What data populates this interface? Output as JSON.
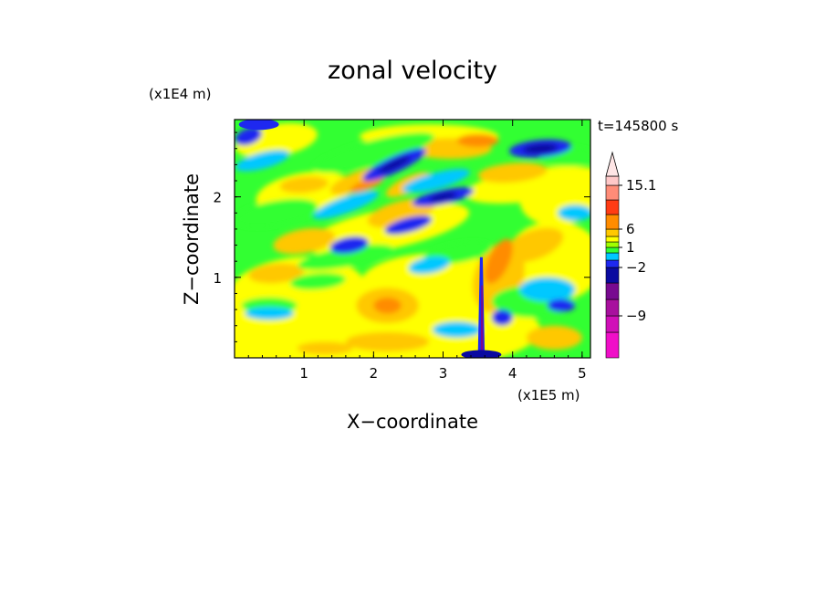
{
  "chart_data": {
    "type": "heatmap",
    "title": "zonal velocity",
    "xlabel": "X−coordinate",
    "ylabel": "Z−coordinate",
    "x_scale_label": "(x1E5 m)",
    "y_scale_label": "(x1E4 m)",
    "time_label": "t=145800 s",
    "xlim": [
      0,
      5.12
    ],
    "ylim": [
      0,
      2.96
    ],
    "x_ticks": [
      "1",
      "2",
      "3",
      "4",
      "5"
    ],
    "x_tick_values": [
      1,
      2,
      3,
      4,
      5
    ],
    "y_ticks": [
      "1",
      "2"
    ],
    "y_tick_values": [
      1,
      2
    ],
    "colorbar": {
      "levels": [
        -15,
        -12,
        -9,
        -6,
        -4,
        -2,
        -1,
        0,
        1,
        2,
        4,
        6,
        9,
        12,
        15.1
      ],
      "colors": [
        "#f00fc8",
        "#d010b8",
        "#a8109e",
        "#780a90",
        "#0a0aa0",
        "#1e28f0",
        "#00c8ff",
        "#32ff32",
        "#a0ff00",
        "#ffff00",
        "#ffc800",
        "#ff8c00",
        "#ff3c14",
        "#ff8c78",
        "#ffc8c8"
      ],
      "over_color": "#ffe6e6",
      "tick_labels": [
        "15.1",
        "6",
        "1",
        "−2",
        "−9"
      ],
      "tick_values": [
        15.1,
        6,
        1,
        -2,
        -9
      ]
    },
    "field_samples": {
      "note_x_units": "1E5 m",
      "points": [
        {
          "x": 0.4,
          "z": 2.5,
          "u": 0.3
        },
        {
          "x": 1.5,
          "z": 1.4,
          "u": 3.0
        },
        {
          "x": 1.7,
          "z": 1.4,
          "u": -5.0
        },
        {
          "x": 2.3,
          "z": 2.4,
          "u": -5.0
        },
        {
          "x": 2.5,
          "z": 1.7,
          "u": -5.0
        },
        {
          "x": 3.0,
          "z": 2.0,
          "u": -5.0
        },
        {
          "x": 4.3,
          "z": 2.6,
          "u": -6.0
        },
        {
          "x": 2.2,
          "z": 0.6,
          "u": 3.0
        },
        {
          "x": 3.55,
          "z": 0.5,
          "u": -6.0
        },
        {
          "x": 3.8,
          "z": 1.0,
          "u": 5.0
        },
        {
          "x": 0.5,
          "z": 0.6,
          "u": 1.5
        }
      ]
    }
  }
}
